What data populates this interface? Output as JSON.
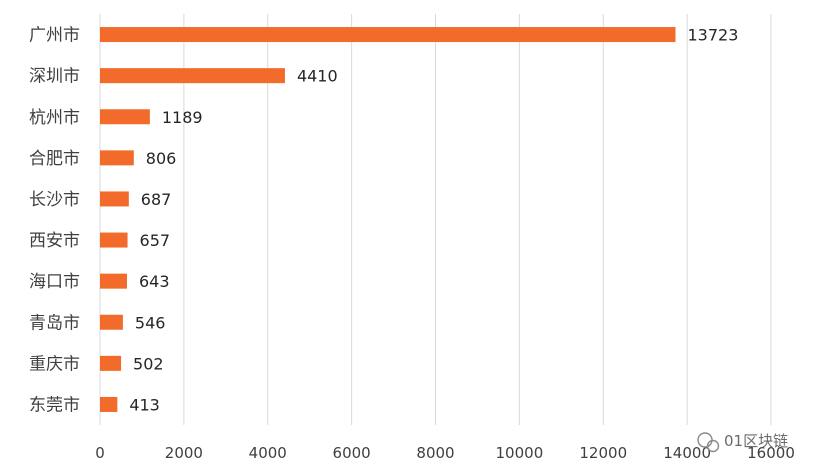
{
  "chart_data": {
    "type": "bar",
    "orientation": "horizontal",
    "categories": [
      "广州市",
      "深圳市",
      "杭州市",
      "合肥市",
      "长沙市",
      "西安市",
      "海口市",
      "青岛市",
      "重庆市",
      "东莞市"
    ],
    "values": [
      13723,
      4410,
      1189,
      806,
      687,
      657,
      643,
      546,
      502,
      413
    ],
    "xlim": [
      0,
      16000
    ],
    "xticks": [
      0,
      2000,
      4000,
      6000,
      8000,
      10000,
      12000,
      14000,
      16000
    ],
    "xtick_labels": [
      "0",
      "2000",
      "4000",
      "6000",
      "8000",
      "10000",
      "12000",
      "14000",
      "16000"
    ],
    "grid": "vertical",
    "bar_color": "#f26b2a",
    "grid_color": "#d9d9d9",
    "data_labels": true
  },
  "watermark": {
    "text": "01区块链",
    "icon": "wechat-icon"
  }
}
